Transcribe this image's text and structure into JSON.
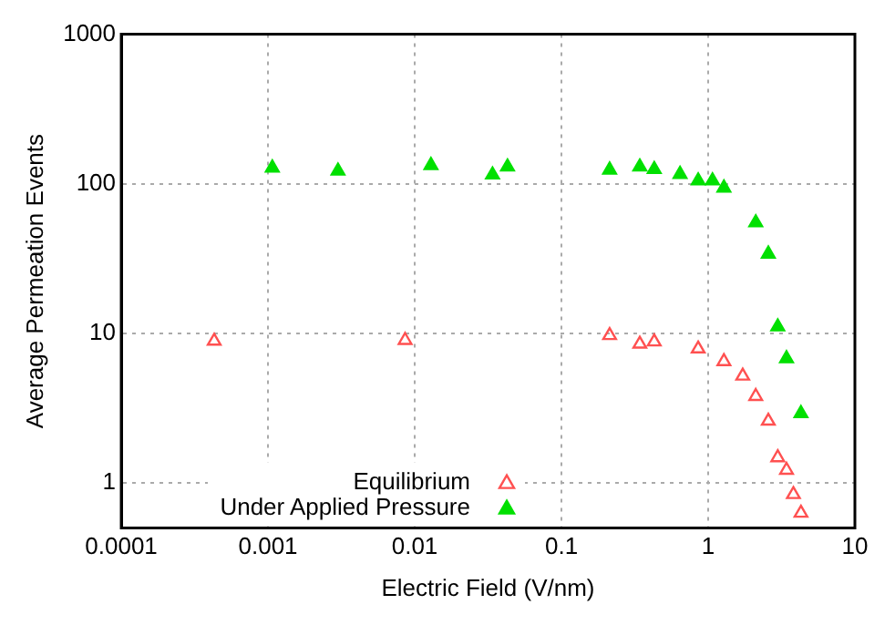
{
  "chart_data": {
    "type": "scatter",
    "xlabel": "Electric Field (V/nm)",
    "ylabel": "Average Permeation Events",
    "log": "xy",
    "xlim": [
      0.0001,
      10
    ],
    "ylim": [
      0.5,
      1000
    ],
    "xticks": [
      0.0001,
      0.001,
      0.01,
      0.1,
      1,
      10
    ],
    "yticks": [
      1,
      10,
      100,
      1000
    ],
    "grid": true,
    "legend": "bottom",
    "marker": "triangle",
    "series": [
      {
        "name": "Equilibrium",
        "color": "#ff5050",
        "x": [
          0.00043,
          0.0086,
          0.213,
          0.342,
          0.429,
          0.855,
          1.28,
          1.72,
          2.11,
          2.57,
          2.98,
          3.42,
          3.81,
          4.29
        ],
        "values": [
          8.9,
          9.0,
          9.7,
          8.5,
          8.8,
          7.9,
          6.5,
          5.2,
          3.8,
          2.6,
          1.48,
          1.22,
          0.84,
          0.63
        ]
      },
      {
        "name": "Under Applied Pressure",
        "color": "#00e000",
        "x": [
          0.00107,
          0.003,
          0.0129,
          0.0339,
          0.0429,
          0.213,
          0.342,
          0.429,
          0.643,
          0.855,
          1.07,
          1.28,
          2.11,
          2.57,
          2.98,
          3.42,
          4.29
        ],
        "values": [
          128,
          122,
          133,
          115,
          130,
          124,
          130,
          125,
          116,
          105,
          105,
          94,
          55,
          34,
          11.1,
          6.8,
          2.92
        ]
      }
    ]
  }
}
